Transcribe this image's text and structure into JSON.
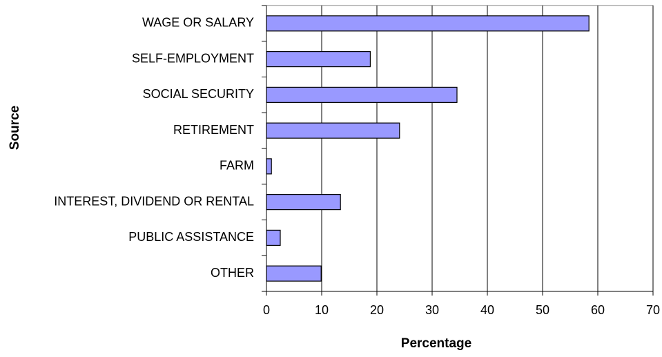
{
  "chart_data": {
    "type": "bar",
    "orientation": "horizontal",
    "categories": [
      "WAGE OR SALARY",
      "SELF-EMPLOYMENT",
      "SOCIAL SECURITY",
      "RETIREMENT",
      "FARM",
      "INTEREST, DIVIDEND OR RENTAL",
      "PUBLIC ASSISTANCE",
      "OTHER"
    ],
    "values": [
      58.4,
      18.8,
      34.5,
      24.1,
      0.9,
      13.4,
      2.5,
      9.9
    ],
    "color": "#9999ff",
    "xlim": [
      0,
      70
    ],
    "xticks": [
      0,
      10,
      20,
      30,
      40,
      50,
      60,
      70
    ],
    "xlabel": "Percentage",
    "ylabel": "Source",
    "grid": true
  }
}
